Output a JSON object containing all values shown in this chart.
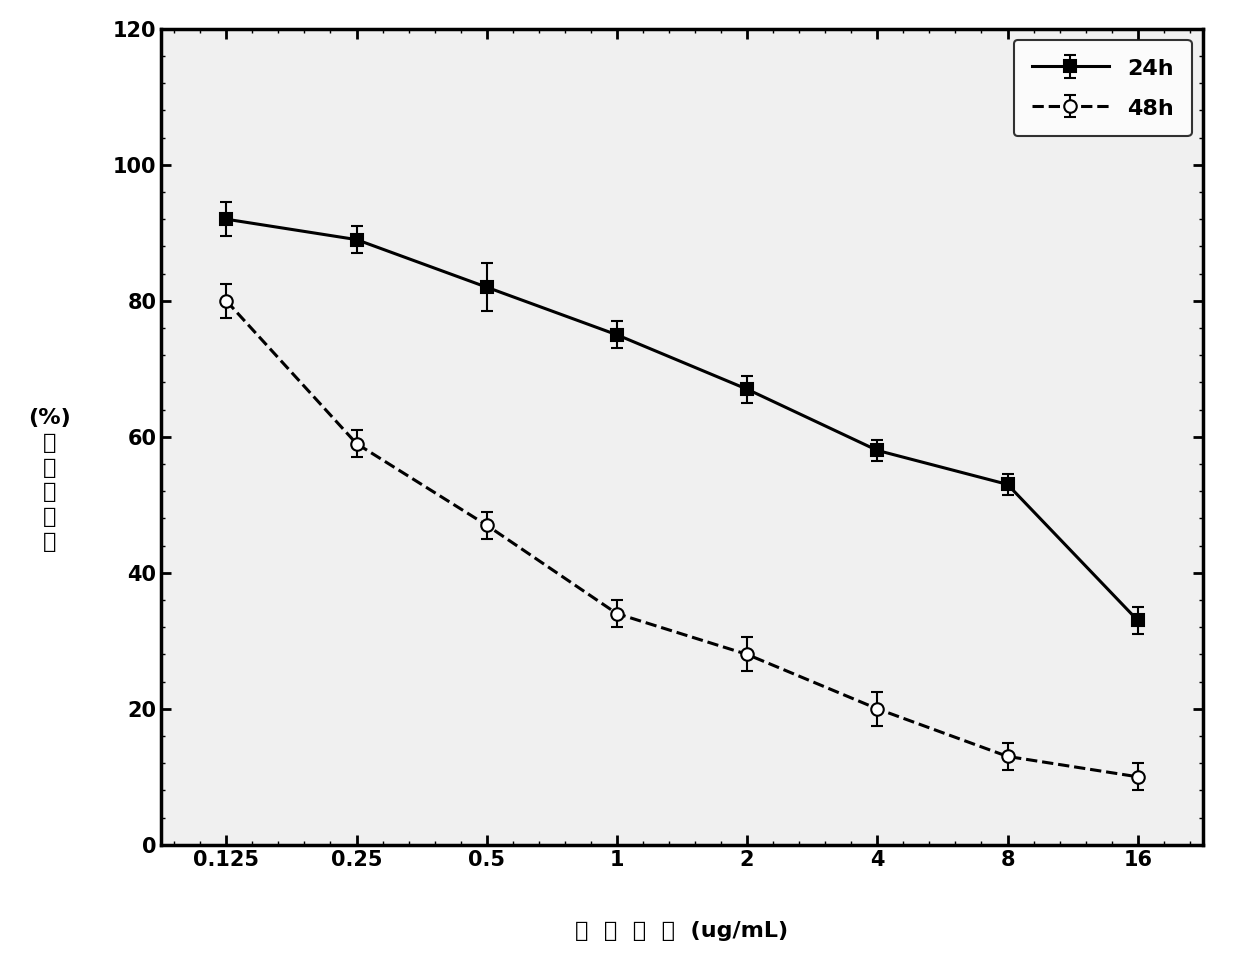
{
  "x_values": [
    0.125,
    0.25,
    0.5,
    1,
    2,
    4,
    8,
    16
  ],
  "x_labels": [
    "0.125",
    "0.25",
    "0.5",
    "1",
    "2",
    "4",
    "8",
    "16"
  ],
  "series_24h": {
    "y": [
      92,
      89,
      82,
      75,
      67,
      58,
      53,
      33
    ],
    "yerr": [
      2.5,
      2.0,
      3.5,
      2.0,
      2.0,
      1.5,
      1.5,
      2.0
    ],
    "label": "24h",
    "color": "#000000",
    "linestyle": "-",
    "marker": "s",
    "markerfacecolor": "#000000",
    "markersize": 9,
    "linewidth": 2.2
  },
  "series_48h": {
    "y": [
      80,
      59,
      47,
      34,
      28,
      20,
      13,
      10
    ],
    "yerr": [
      2.5,
      2.0,
      2.0,
      2.0,
      2.5,
      2.5,
      2.0,
      2.0
    ],
    "label": "48h",
    "color": "#000000",
    "linestyle": "--",
    "marker": "o",
    "markerfacecolor": "#ffffff",
    "markersize": 9,
    "linewidth": 2.2
  },
  "ylabel_line1": "(%)",
  "ylabel_line2": "维",
  "ylabel_line3": "存",
  "ylabel_line4": "活",
  "ylabel_line5": "胞",
  "ylabel_line6": "细",
  "xlabel_chinese": "黑  磷  浓  度",
  "xlabel_unit": "(ug/mL)",
  "ylim": [
    0,
    120
  ],
  "yticks": [
    0,
    20,
    40,
    60,
    80,
    100,
    120
  ],
  "background_color": "#ffffff",
  "plot_bg_color": "#f0f0f0",
  "legend_fontsize": 16,
  "axis_fontsize": 16,
  "tick_fontsize": 15
}
